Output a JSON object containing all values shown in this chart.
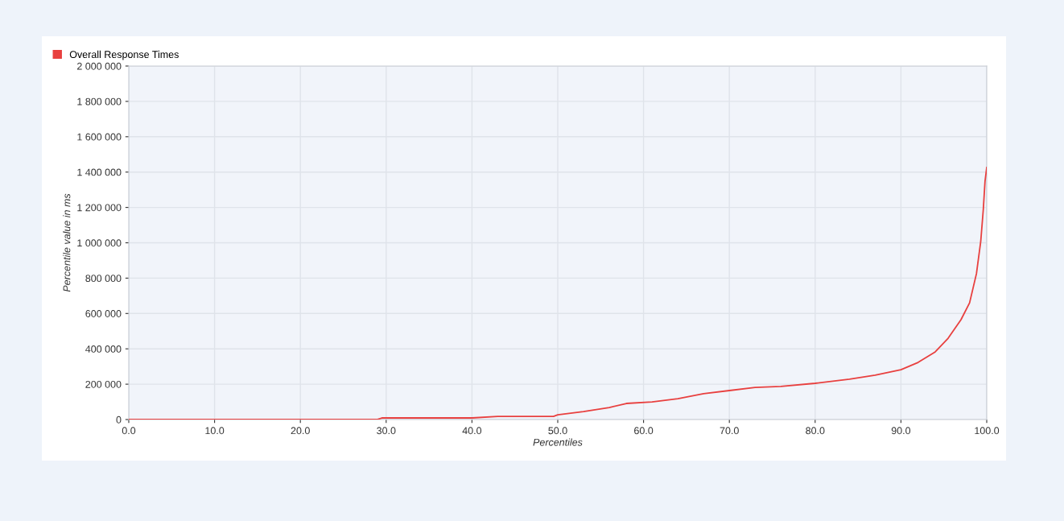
{
  "chart_data": {
    "type": "line",
    "xlabel": "Percentiles",
    "ylabel": "Percentile value in ms",
    "x": [
      0,
      5,
      10,
      15,
      20,
      25,
      29,
      29.5,
      35,
      40,
      43,
      46,
      49.5,
      50,
      53,
      56,
      58,
      61,
      64,
      67,
      70,
      73,
      76,
      80,
      84,
      87,
      90,
      92,
      94,
      95.5,
      97,
      98,
      98.8,
      99.3,
      99.6,
      99.8,
      100
    ],
    "series": [
      {
        "name": "Overall Response Times",
        "color": "#e8403f",
        "values": [
          1000,
          1000,
          1000,
          1000,
          1000,
          1000,
          1000,
          9000,
          9000,
          9000,
          18000,
          18000,
          18000,
          27000,
          45000,
          68000,
          91000,
          100000,
          118000,
          146000,
          164000,
          182000,
          187000,
          205000,
          228000,
          251000,
          282000,
          323000,
          383000,
          460000,
          565000,
          660000,
          825000,
          1007000,
          1189000,
          1348000,
          1426000
        ]
      }
    ],
    "xlim": [
      0,
      100
    ],
    "xticks": [
      {
        "value": 0,
        "label": "0.0"
      },
      {
        "value": 10,
        "label": "10.0"
      },
      {
        "value": 20,
        "label": "20.0"
      },
      {
        "value": 30,
        "label": "30.0"
      },
      {
        "value": 40,
        "label": "40.0"
      },
      {
        "value": 50,
        "label": "50.0"
      },
      {
        "value": 60,
        "label": "60.0"
      },
      {
        "value": 70,
        "label": "70.0"
      },
      {
        "value": 80,
        "label": "80.0"
      },
      {
        "value": 90,
        "label": "90.0"
      },
      {
        "value": 100,
        "label": "100.0"
      }
    ],
    "ylim": [
      0,
      2000000
    ],
    "yticks": [
      0,
      {
        "value": 200000,
        "label": "200 000"
      },
      {
        "value": 400000,
        "label": "400 000"
      },
      {
        "value": 600000,
        "label": "600 000"
      },
      {
        "value": 800000,
        "label": "800 000"
      },
      {
        "value": 1000000,
        "label": "1 000 000"
      },
      {
        "value": 1200000,
        "label": "1 200 000"
      },
      {
        "value": 1400000,
        "label": "1 400 000"
      },
      {
        "value": 1600000,
        "label": "1 600 000"
      },
      {
        "value": 1800000,
        "label": "1 800 000"
      },
      {
        "value": 2000000,
        "label": "2 000 000"
      }
    ],
    "grid": true,
    "legend": "top left",
    "marker": "none",
    "line_style": "solid"
  }
}
